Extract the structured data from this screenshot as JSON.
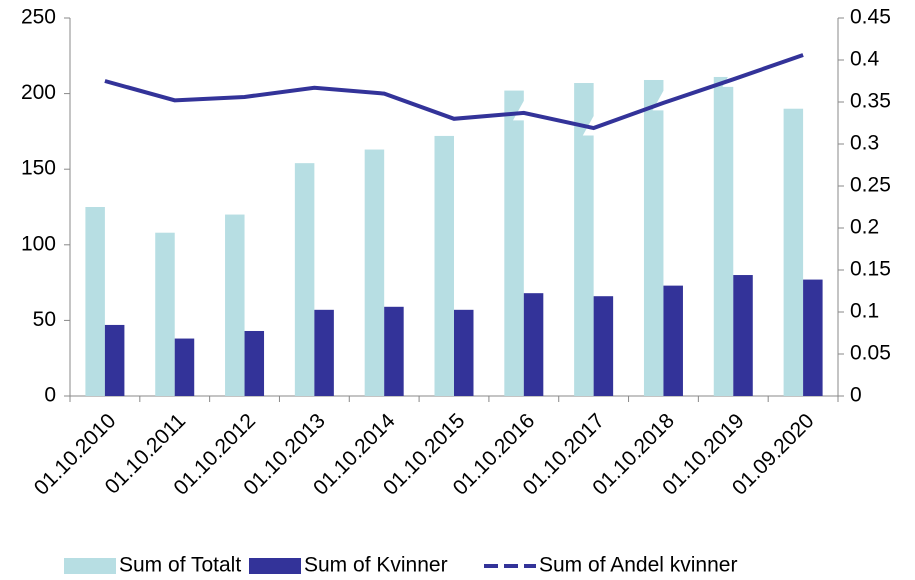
{
  "chart_data": {
    "type": "bar-line",
    "categories": [
      "01.10.2010",
      "01.10.2011",
      "01.10.2012",
      "01.10.2013",
      "01.10.2014",
      "01.10.2015",
      "01.10.2016",
      "01.10.2017",
      "01.10.2018",
      "01.10.2019",
      "01.09.2020"
    ],
    "series": [
      {
        "name": "Sum of Totalt",
        "type": "bar",
        "color": "#b7dee3",
        "values": [
          125,
          108,
          120,
          154,
          163,
          172,
          202,
          207,
          209,
          211,
          190
        ]
      },
      {
        "name": "Sum of Kvinner",
        "type": "bar",
        "color": "#333399",
        "values": [
          47,
          38,
          43,
          57,
          59,
          57,
          68,
          66,
          73,
          80,
          77
        ]
      },
      {
        "name": "Sum of Andel kvinner",
        "type": "line",
        "axis": "y2",
        "color": "#333399",
        "values": [
          0.375,
          0.352,
          0.356,
          0.367,
          0.36,
          0.33,
          0.337,
          0.319,
          0.349,
          0.377,
          0.406
        ]
      }
    ],
    "ylim": [
      0,
      250
    ],
    "yticks": [
      0,
      50,
      100,
      150,
      200,
      250
    ],
    "y2lim": [
      0,
      0.45
    ],
    "y2ticks": [
      0,
      0.05,
      0.1,
      0.15,
      0.2,
      0.25,
      0.3,
      0.35,
      0.4,
      0.45
    ],
    "grid": false,
    "legend": "bottom"
  }
}
